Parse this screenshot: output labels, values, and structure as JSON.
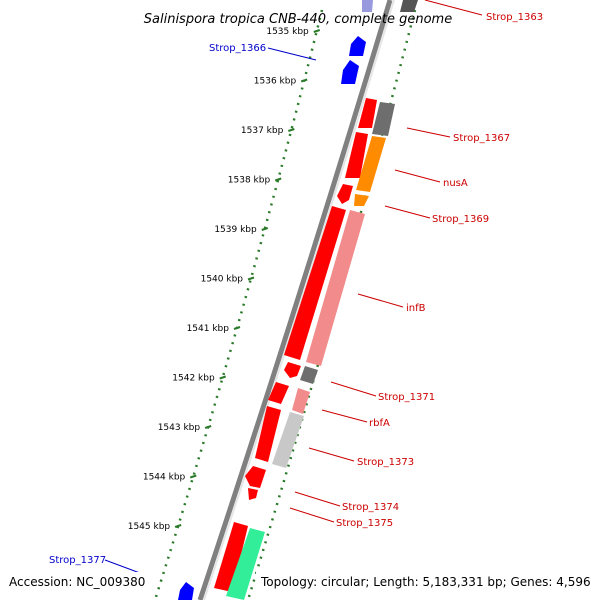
{
  "title": "Salinispora tropica CNB-440, complete genome",
  "footer": {
    "accession": "Accession: NC_009380",
    "summary": "Topology: circular; Length: 5,183,331 bp; Genes: 4,596"
  },
  "colors": {
    "backbone": "#808080",
    "forward_label": "#cc0000",
    "reverse_label": "#0000cc",
    "tick_major": "#2a7a2a",
    "tick_minor": "#2a7a2a",
    "gene_red": "#ff0000",
    "gene_blue": "#0000ff",
    "gene_darkgrey": "#6e6e6e",
    "gene_orange": "#ff8c00",
    "gene_salmon": "#f28b8b",
    "gene_lightgrey": "#c8c8c8",
    "gene_green": "#33ee99"
  },
  "kbp_ticks": [
    {
      "label": "1535 kbp"
    },
    {
      "label": "1536 kbp"
    },
    {
      "label": "1537 kbp"
    },
    {
      "label": "1538 kbp"
    },
    {
      "label": "1539 kbp"
    },
    {
      "label": "1540 kbp"
    },
    {
      "label": "1541 kbp"
    },
    {
      "label": "1542 kbp"
    },
    {
      "label": "1543 kbp"
    },
    {
      "label": "1544 kbp"
    },
    {
      "label": "1545 kbp"
    }
  ],
  "gene_labels": [
    {
      "text": "Strop_1363",
      "strand": "forward"
    },
    {
      "text": "Strop_1366",
      "strand": "reverse"
    },
    {
      "text": "Strop_1367",
      "strand": "forward"
    },
    {
      "text": "nusA",
      "strand": "forward"
    },
    {
      "text": "Strop_1369",
      "strand": "forward"
    },
    {
      "text": "infB",
      "strand": "forward"
    },
    {
      "text": "Strop_1371",
      "strand": "forward"
    },
    {
      "text": "rbfA",
      "strand": "forward"
    },
    {
      "text": "Strop_1373",
      "strand": "forward"
    },
    {
      "text": "Strop_1374",
      "strand": "forward"
    },
    {
      "text": "Strop_1375",
      "strand": "forward"
    },
    {
      "text": "Strop_1377",
      "strand": "reverse"
    }
  ]
}
